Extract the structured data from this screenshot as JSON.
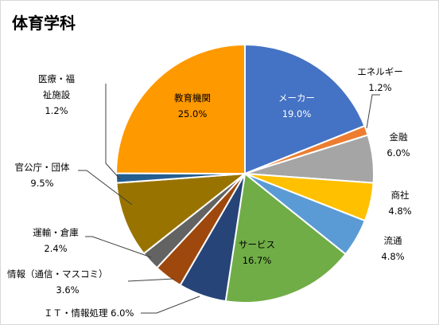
{
  "chart_data": {
    "type": "pie",
    "title": "体育学科",
    "slices": [
      {
        "label": "メーカー",
        "value": 19.0,
        "value_text": "19.0%",
        "color": "#4472c4"
      },
      {
        "label": "エネルギー",
        "value": 1.2,
        "value_text": "1.2%",
        "color": "#ed7d31"
      },
      {
        "label": "金融",
        "value": 6.0,
        "value_text": "6.0%",
        "color": "#a5a5a5"
      },
      {
        "label": "商社",
        "value": 4.8,
        "value_text": "4.8%",
        "color": "#ffc000"
      },
      {
        "label": "流通",
        "value": 4.8,
        "value_text": "4.8%",
        "color": "#5b9bd5"
      },
      {
        "label": "サービス",
        "value": 16.7,
        "value_text": "16.7%",
        "color": "#70ad47"
      },
      {
        "label": "ＩＴ・情報処理",
        "value": 6.0,
        "value_text": "6.0%",
        "color": "#264478"
      },
      {
        "label": "情報（通信・マスコミ）",
        "value": 3.6,
        "value_text": "3.6%",
        "color": "#9e480e"
      },
      {
        "label": "運輸・倉庫",
        "value": 2.4,
        "value_text": "2.4%",
        "color": "#636363"
      },
      {
        "label": "官公庁・団体",
        "value": 9.5,
        "value_text": "9.5%",
        "color": "#997300"
      },
      {
        "label": "医療・福祉施設",
        "value": 1.2,
        "value_text": "1.2%",
        "color": "#255e91"
      },
      {
        "label": "教育機関",
        "value": 25.0,
        "value_text": "25.0%",
        "color": "#ff9900"
      }
    ]
  }
}
